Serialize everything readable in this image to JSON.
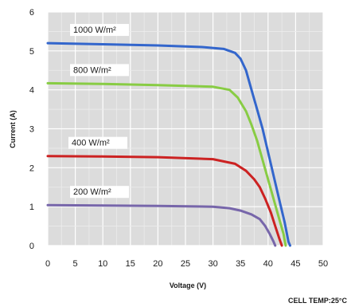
{
  "chart_data": {
    "type": "line",
    "xlabel": "Voltage (V)",
    "ylabel": "Current (A)",
    "xlim": [
      0,
      50
    ],
    "ylim": [
      0,
      6
    ],
    "x_ticks": [
      "0",
      "5",
      "10",
      "15",
      "20",
      "25",
      "30",
      "35",
      "40",
      "45",
      "50"
    ],
    "y_ticks": [
      "0",
      "1",
      "2",
      "3",
      "4",
      "5",
      "6"
    ],
    "grid": true,
    "footer_note": "CELL TEMP:25°C",
    "series": [
      {
        "name": "1000 W/m²",
        "color": "#3366cc",
        "points": [
          [
            0,
            5.2
          ],
          [
            10,
            5.17
          ],
          [
            20,
            5.14
          ],
          [
            28,
            5.1
          ],
          [
            32,
            5.05
          ],
          [
            34,
            4.95
          ],
          [
            35,
            4.8
          ],
          [
            36,
            4.5
          ],
          [
            37,
            4.0
          ],
          [
            38,
            3.5
          ],
          [
            39,
            3.0
          ],
          [
            40,
            2.4
          ],
          [
            41,
            1.8
          ],
          [
            42,
            1.2
          ],
          [
            43,
            0.6
          ],
          [
            43.7,
            0.1
          ],
          [
            44,
            0
          ]
        ]
      },
      {
        "name": "800 W/m²",
        "color": "#88cc44",
        "points": [
          [
            0,
            4.17
          ],
          [
            10,
            4.15
          ],
          [
            20,
            4.12
          ],
          [
            30,
            4.08
          ],
          [
            33,
            4.0
          ],
          [
            34.5,
            3.8
          ],
          [
            36,
            3.45
          ],
          [
            37,
            3.1
          ],
          [
            38,
            2.7
          ],
          [
            39,
            2.2
          ],
          [
            40,
            1.7
          ],
          [
            41,
            1.2
          ],
          [
            42,
            0.7
          ],
          [
            42.8,
            0.3
          ],
          [
            43.2,
            0
          ]
        ]
      },
      {
        "name": "400 W/m²",
        "color": "#cc2222",
        "points": [
          [
            0,
            2.3
          ],
          [
            10,
            2.29
          ],
          [
            20,
            2.27
          ],
          [
            30,
            2.22
          ],
          [
            34,
            2.1
          ],
          [
            36,
            1.92
          ],
          [
            37.5,
            1.7
          ],
          [
            38.5,
            1.5
          ],
          [
            39.5,
            1.2
          ],
          [
            40.5,
            0.85
          ],
          [
            41.3,
            0.5
          ],
          [
            42,
            0.2
          ],
          [
            42.5,
            0
          ]
        ]
      },
      {
        "name": "200 W/m²",
        "color": "#7766aa",
        "points": [
          [
            0,
            1.04
          ],
          [
            10,
            1.03
          ],
          [
            20,
            1.02
          ],
          [
            30,
            1.0
          ],
          [
            33,
            0.96
          ],
          [
            35,
            0.9
          ],
          [
            37,
            0.8
          ],
          [
            38.5,
            0.68
          ],
          [
            39.5,
            0.5
          ],
          [
            40.3,
            0.3
          ],
          [
            41,
            0.1
          ],
          [
            41.3,
            0
          ]
        ]
      }
    ]
  }
}
